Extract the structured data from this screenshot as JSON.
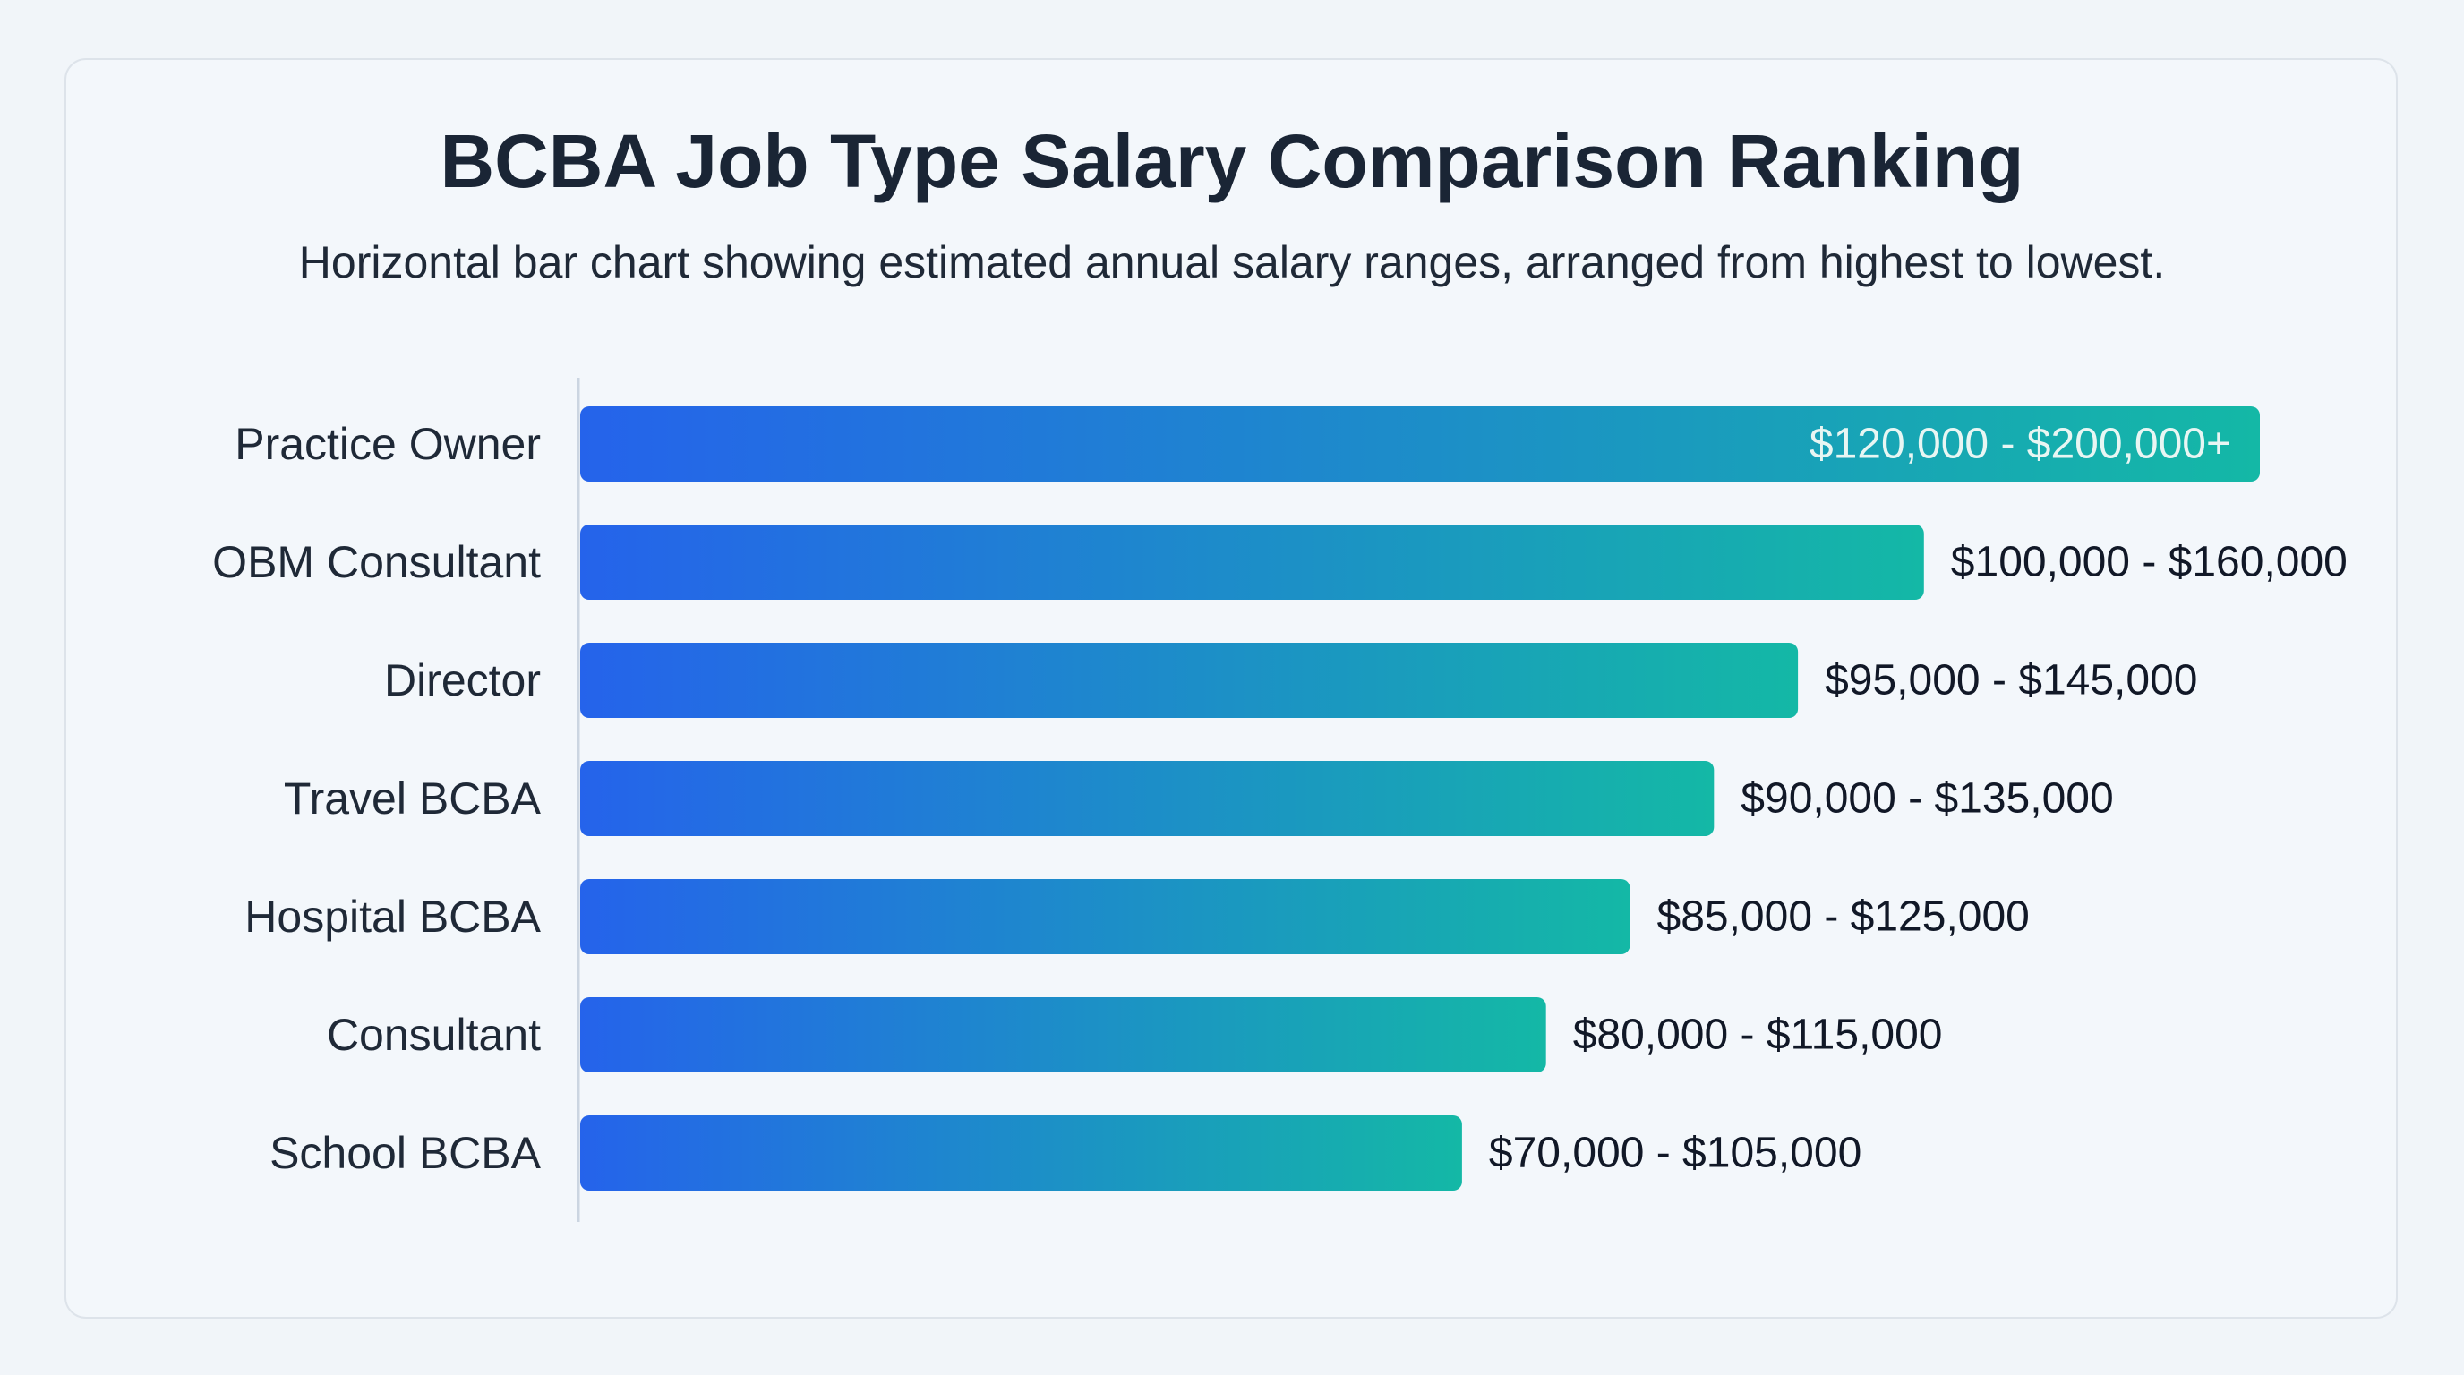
{
  "chart_data": {
    "type": "bar",
    "orientation": "horizontal",
    "title": "BCBA Job Type Salary Comparison Ranking",
    "subtitle": "Horizontal bar chart showing estimated annual salary ranges, arranged from highest to lowest.",
    "categories": [
      "Practice Owner",
      "OBM Consultant",
      "Director",
      "Travel BCBA",
      "Hospital BCBA",
      "Consultant",
      "School BCBA"
    ],
    "values": [
      200000,
      160000,
      145000,
      135000,
      125000,
      115000,
      105000
    ],
    "labels": [
      "$120,000 - $200,000+",
      "$100,000 - $160,000",
      "$95,000 - $145,000",
      "$90,000 - $135,000",
      "$85,000 - $125,000",
      "$80,000 - $115,000",
      "$70,000 - $105,000"
    ],
    "xlim": [
      0,
      200000
    ],
    "grid": false,
    "colors": {
      "bar_start": "#2563eb",
      "bar_end": "#14b8a6",
      "axis": "#cbd5e1"
    }
  }
}
